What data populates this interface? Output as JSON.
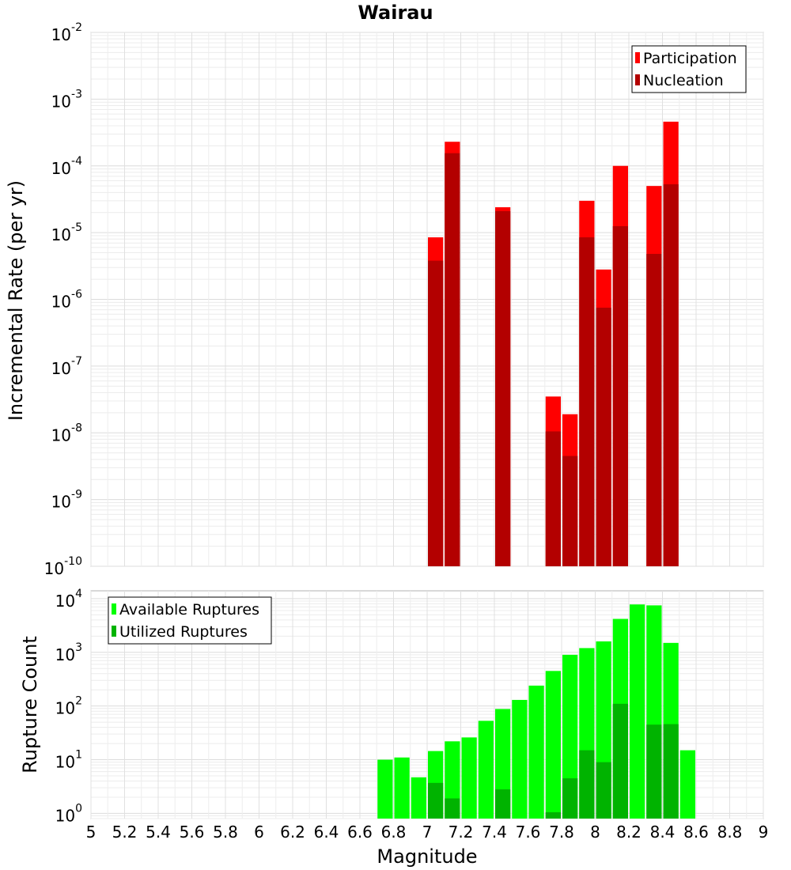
{
  "title": "Wairau",
  "chart_data": [
    {
      "type": "bar",
      "panel": "top",
      "ylabel": "Incremental Rate (per yr)",
      "yscale": "log",
      "ylim": [
        1e-10,
        0.01
      ],
      "xlim": [
        5,
        9
      ],
      "y_tick_labels": [
        {
          "base": "10",
          "exp": "-10",
          "value": 1e-10
        },
        {
          "base": "10",
          "exp": "-9",
          "value": 1e-09
        },
        {
          "base": "10",
          "exp": "-8",
          "value": 1e-08
        },
        {
          "base": "10",
          "exp": "-7",
          "value": 1e-07
        },
        {
          "base": "10",
          "exp": "-6",
          "value": 1e-06
        },
        {
          "base": "10",
          "exp": "-5",
          "value": 1e-05
        },
        {
          "base": "10",
          "exp": "-4",
          "value": 0.0001
        },
        {
          "base": "10",
          "exp": "-3",
          "value": 0.001
        },
        {
          "base": "10",
          "exp": "-2",
          "value": 0.01
        }
      ],
      "legend_position": "top-right",
      "bar_width": 0.1,
      "series": [
        {
          "name": "Participation",
          "color": "#ff0000",
          "points": [
            {
              "x": 7.05,
              "y": 8.5e-06
            },
            {
              "x": 7.15,
              "y": 0.00023
            },
            {
              "x": 7.45,
              "y": 2.4e-05
            },
            {
              "x": 7.75,
              "y": 3.5e-08
            },
            {
              "x": 7.85,
              "y": 1.9e-08
            },
            {
              "x": 7.95,
              "y": 3e-05
            },
            {
              "x": 8.05,
              "y": 2.8e-06
            },
            {
              "x": 8.15,
              "y": 0.0001
            },
            {
              "x": 8.35,
              "y": 5e-05
            },
            {
              "x": 8.45,
              "y": 0.00046
            }
          ]
        },
        {
          "name": "Nucleation",
          "color": "#b30000",
          "points": [
            {
              "x": 7.05,
              "y": 3.8e-06
            },
            {
              "x": 7.15,
              "y": 0.000155
            },
            {
              "x": 7.45,
              "y": 2.1e-05
            },
            {
              "x": 7.75,
              "y": 1.05e-08
            },
            {
              "x": 7.85,
              "y": 4.5e-09
            },
            {
              "x": 7.95,
              "y": 8.5e-06
            },
            {
              "x": 8.05,
              "y": 7.5e-07
            },
            {
              "x": 8.15,
              "y": 1.25e-05
            },
            {
              "x": 8.35,
              "y": 4.8e-06
            },
            {
              "x": 8.45,
              "y": 5.3e-05
            }
          ]
        }
      ]
    },
    {
      "type": "bar",
      "panel": "bottom",
      "xlabel": "Magnitude",
      "ylabel": "Rupture Count",
      "yscale": "log",
      "ylim": [
        0.8,
        14000
      ],
      "xlim": [
        5,
        9
      ],
      "x_ticks": [
        "5",
        "5.2",
        "5.4",
        "5.6",
        "5.8",
        "6",
        "6.2",
        "6.4",
        "6.6",
        "6.8",
        "7",
        "7.2",
        "7.4",
        "7.6",
        "7.8",
        "8",
        "8.2",
        "8.4",
        "8.6",
        "8.8",
        "9"
      ],
      "y_tick_labels": [
        {
          "base": "10",
          "exp": "0",
          "value": 1
        },
        {
          "base": "10",
          "exp": "1",
          "value": 10
        },
        {
          "base": "10",
          "exp": "2",
          "value": 100
        },
        {
          "base": "10",
          "exp": "3",
          "value": 1000
        },
        {
          "base": "10",
          "exp": "4",
          "value": 10000
        }
      ],
      "legend_position": "top-left",
      "bar_width": 0.1,
      "series": [
        {
          "name": "Available Ruptures",
          "color": "#00ff00",
          "points": [
            {
              "x": 6.75,
              "y": 10
            },
            {
              "x": 6.85,
              "y": 11
            },
            {
              "x": 6.95,
              "y": 4.7
            },
            {
              "x": 7.05,
              "y": 14.5
            },
            {
              "x": 7.15,
              "y": 22
            },
            {
              "x": 7.25,
              "y": 26
            },
            {
              "x": 7.35,
              "y": 53
            },
            {
              "x": 7.45,
              "y": 88
            },
            {
              "x": 7.55,
              "y": 130
            },
            {
              "x": 7.65,
              "y": 240
            },
            {
              "x": 7.75,
              "y": 450
            },
            {
              "x": 7.85,
              "y": 900
            },
            {
              "x": 7.95,
              "y": 1200
            },
            {
              "x": 8.05,
              "y": 1600
            },
            {
              "x": 8.15,
              "y": 4200
            },
            {
              "x": 8.25,
              "y": 7800
            },
            {
              "x": 8.35,
              "y": 7500
            },
            {
              "x": 8.45,
              "y": 1500
            },
            {
              "x": 8.55,
              "y": 15
            }
          ]
        },
        {
          "name": "Utilized Ruptures",
          "color": "#00b300",
          "points": [
            {
              "x": 7.05,
              "y": 3.7
            },
            {
              "x": 7.15,
              "y": 1.9
            },
            {
              "x": 7.45,
              "y": 2.8
            },
            {
              "x": 7.75,
              "y": 1.05
            },
            {
              "x": 7.85,
              "y": 4.5
            },
            {
              "x": 7.95,
              "y": 15
            },
            {
              "x": 8.05,
              "y": 9
            },
            {
              "x": 8.15,
              "y": 110
            },
            {
              "x": 8.35,
              "y": 45
            },
            {
              "x": 8.45,
              "y": 46
            }
          ]
        }
      ]
    }
  ]
}
